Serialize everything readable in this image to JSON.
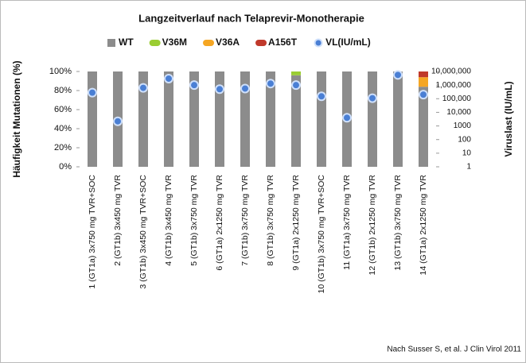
{
  "chart_data": {
    "type": "bar",
    "stacked": true,
    "title": "Langzeitverlauf nach Telaprevir-Monotherapie",
    "ylabel": "Häufigkeit Mutationen (%)",
    "y2label": "Viruslast (IU/mL)",
    "annotation": "Nach Susser S, et al. J Clin Virol 2011",
    "categories": [
      "1 (GT1a) 3x750 mg TVR+SOC",
      "2 (GT1b) 3x450 mg TVR",
      "3 (GT1b) 3x450 mg TVR+SOC",
      "4 (GT1b) 3x450 mg TVR",
      "5 (GT1b) 3x750 mg TVR",
      "6 (GT1a) 2x1250 mg TVR",
      "7 (GT1b) 3x750 mg TVR",
      "8 (GT1b) 3x750 mg TVR",
      "9 (GT1a) 2x1250 mg TVR",
      "10 (GT1b) 3x750 mg TVR+SOC",
      "11 (GT1a) 3x750 mg TVR",
      "12 (GT1b) 2x1250 mg TVR",
      "13 (GT1b) 3x750 mg TVR",
      "14 (GT1a) 2x1250 mg TVR"
    ],
    "series": [
      {
        "name": "WT",
        "color": "#8c8c8c",
        "values": [
          100,
          100,
          100,
          100,
          100,
          100,
          100,
          100,
          96,
          100,
          100,
          100,
          100,
          84
        ]
      },
      {
        "name": "V36M",
        "color": "#9acd32",
        "values": [
          0,
          0,
          0,
          0,
          0,
          0,
          0,
          0,
          4,
          0,
          0,
          0,
          0,
          0
        ]
      },
      {
        "name": "V36A",
        "color": "#f5a623",
        "values": [
          0,
          0,
          0,
          0,
          0,
          0,
          0,
          0,
          0,
          0,
          0,
          0,
          0,
          10
        ]
      },
      {
        "name": "A156T",
        "color": "#c0392b",
        "values": [
          0,
          0,
          0,
          0,
          0,
          0,
          0,
          0,
          0,
          0,
          0,
          0,
          0,
          6
        ]
      },
      {
        "name": "VL(IU/mL)",
        "color": "#4a7fd4",
        "axis": "y2",
        "values": [
          280000,
          2200,
          630000,
          3000000,
          1000000,
          500000,
          560000,
          1300000,
          1000000,
          150000,
          4000,
          110000,
          5600000,
          200000
        ]
      }
    ],
    "ylim": [
      0,
      100
    ],
    "yticks": [
      {
        "value": 0,
        "label": "0%"
      },
      {
        "value": 20,
        "label": "20%"
      },
      {
        "value": 40,
        "label": "40%"
      },
      {
        "value": 60,
        "label": "60%"
      },
      {
        "value": 80,
        "label": "80%"
      },
      {
        "value": 100,
        "label": "100%"
      }
    ],
    "y2lim": [
      1,
      10000000
    ],
    "y2scale": "log",
    "y2ticks": [
      1,
      10,
      100,
      1000,
      {
        "value": 10000,
        "label": "10,000"
      },
      {
        "value": 100000,
        "label": "100,000"
      },
      {
        "value": 1000000,
        "label": "1,000,000"
      },
      {
        "value": 10000000,
        "label": "10,000,000"
      }
    ]
  }
}
